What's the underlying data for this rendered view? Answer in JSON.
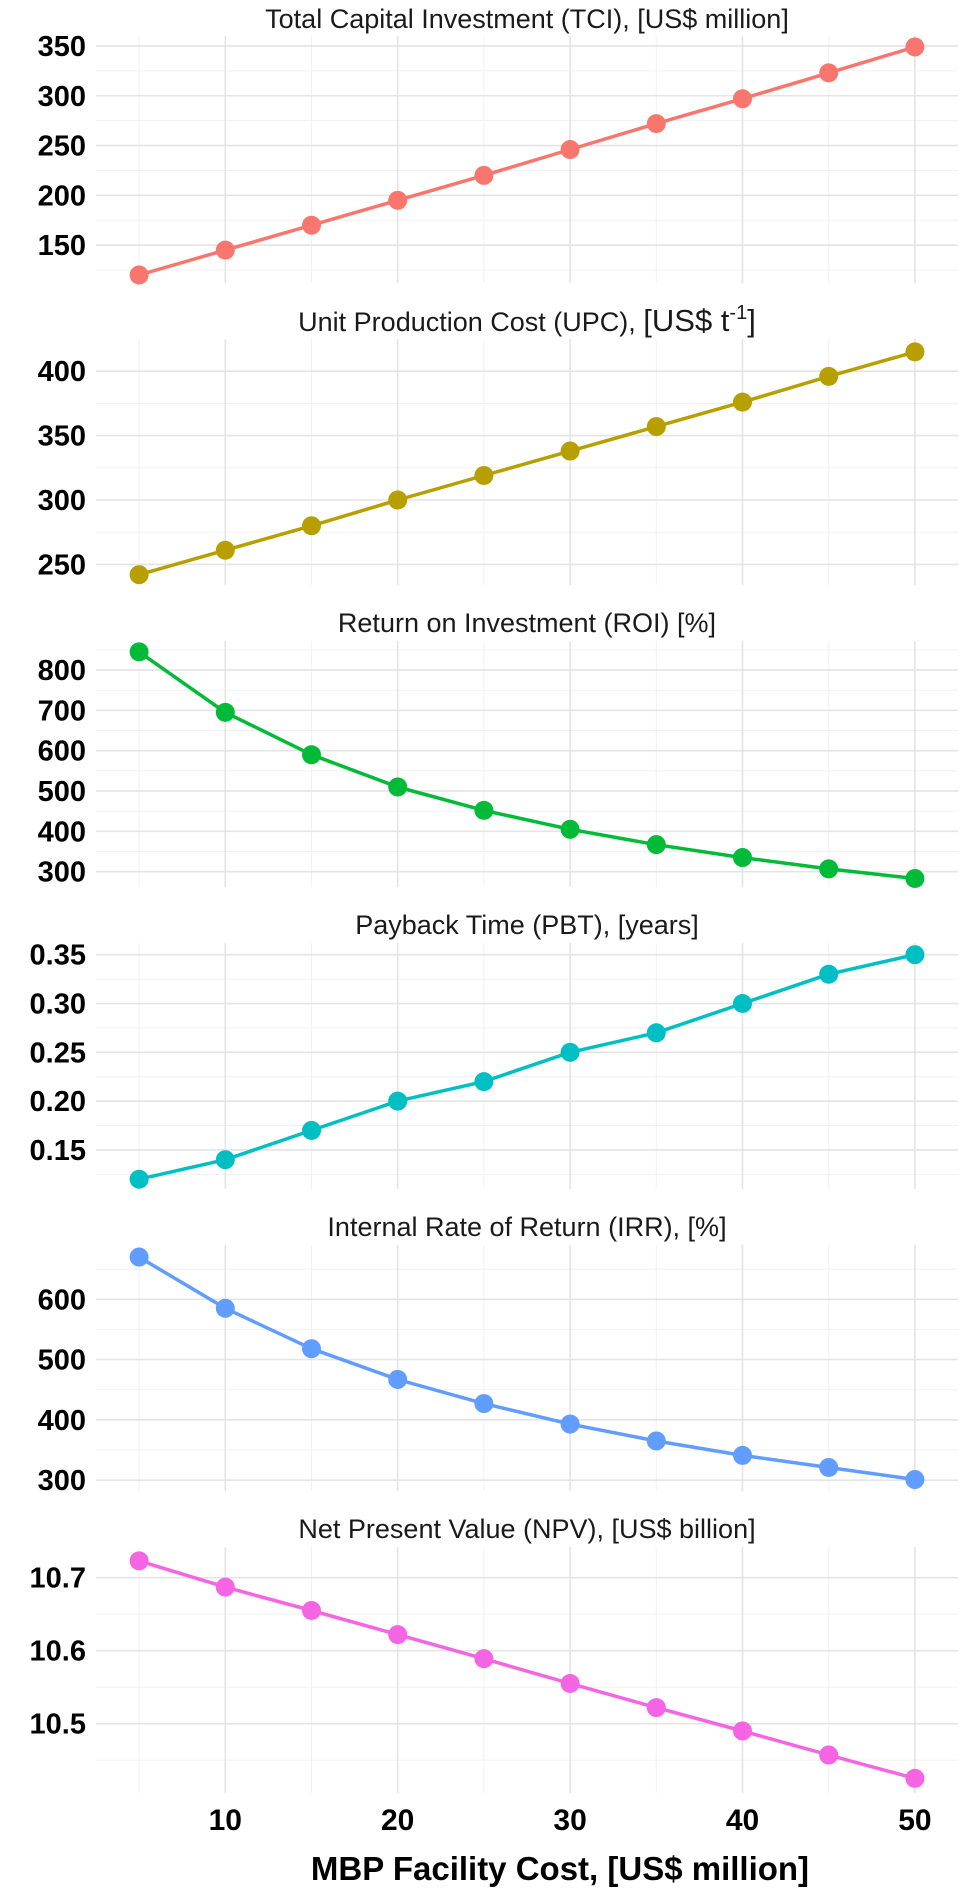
{
  "chart_data": [
    {
      "type": "line",
      "title": "Total Capital Investment (TCI), [US$ million]",
      "x": [
        5,
        10,
        15,
        20,
        25,
        30,
        35,
        40,
        45,
        50
      ],
      "series": [
        {
          "values": [
            120,
            145,
            170,
            195,
            220,
            246,
            272,
            297,
            323,
            349
          ],
          "color": "#F8766D"
        }
      ],
      "ylim": [
        112,
        360
      ],
      "yticks": [
        150,
        200,
        250,
        300,
        350
      ],
      "ytick_labels": [
        "150",
        "200",
        "250",
        "300",
        "350"
      ]
    },
    {
      "type": "line",
      "title_main": "Unit Production Cost (UPC), ",
      "title_unit": "[US$ t",
      "title_sup": "-1",
      "title_close": "]",
      "x": [
        5,
        10,
        15,
        20,
        25,
        30,
        35,
        40,
        45,
        50
      ],
      "series": [
        {
          "values": [
            242,
            261,
            280,
            300,
            319,
            338,
            357,
            376,
            396,
            415
          ],
          "color": "#B79F00"
        }
      ],
      "ylim": [
        234,
        425
      ],
      "yticks": [
        250,
        300,
        350,
        400
      ],
      "ytick_labels": [
        "250",
        "300",
        "350",
        "400"
      ]
    },
    {
      "type": "line",
      "title": "Return on Investment (ROI) [%]",
      "x": [
        5,
        10,
        15,
        20,
        25,
        30,
        35,
        40,
        45,
        50
      ],
      "series": [
        {
          "values": [
            845,
            695,
            590,
            510,
            452,
            405,
            367,
            335,
            307,
            283
          ],
          "color": "#00BA38"
        }
      ],
      "ylim": [
        262,
        872
      ],
      "yticks": [
        300,
        400,
        500,
        600,
        700,
        800
      ],
      "ytick_labels": [
        "300",
        "400",
        "500",
        "600",
        "700",
        "800"
      ]
    },
    {
      "type": "line",
      "title": "Payback Time (PBT), [years]",
      "x": [
        5,
        10,
        15,
        20,
        25,
        30,
        35,
        40,
        45,
        50
      ],
      "series": [
        {
          "values": [
            0.12,
            0.14,
            0.17,
            0.2,
            0.22,
            0.25,
            0.27,
            0.3,
            0.33,
            0.35
          ],
          "color": "#00BFC4"
        }
      ],
      "ylim": [
        0.11,
        0.362
      ],
      "yticks": [
        0.15,
        0.2,
        0.25,
        0.3,
        0.35
      ],
      "ytick_labels": [
        "0.15",
        "0.20",
        "0.25",
        "0.30",
        "0.35"
      ]
    },
    {
      "type": "line",
      "title": "Internal Rate of Return (IRR), [%]",
      "x": [
        5,
        10,
        15,
        20,
        25,
        30,
        35,
        40,
        45,
        50
      ],
      "series": [
        {
          "values": [
            670,
            585,
            518,
            467,
            427,
            393,
            365,
            341,
            321,
            301
          ],
          "color": "#619CFF"
        }
      ],
      "ylim": [
        282,
        690
      ],
      "yticks": [
        300,
        400,
        500,
        600
      ],
      "ytick_labels": [
        "300",
        "400",
        "500",
        "600"
      ]
    },
    {
      "type": "line",
      "title": "Net Present Value (NPV), [US$ billion]",
      "x": [
        5,
        10,
        15,
        20,
        25,
        30,
        35,
        40,
        45,
        50
      ],
      "series": [
        {
          "values": [
            10.723,
            10.687,
            10.655,
            10.622,
            10.589,
            10.555,
            10.522,
            10.49,
            10.457,
            10.425
          ],
          "color": "#F564E3"
        }
      ],
      "ylim": [
        10.405,
        10.742
      ],
      "yticks": [
        10.5,
        10.6,
        10.7
      ],
      "ytick_labels": [
        "10.5",
        "10.6",
        "10.7"
      ]
    }
  ],
  "x_axis": {
    "label": "MBP Facility Cost, [US$ million]",
    "ticks": [
      10,
      20,
      30,
      40,
      50
    ],
    "tick_labels": [
      "10",
      "20",
      "30",
      "40",
      "50"
    ],
    "xlim": [
      2.5,
      52.5
    ]
  }
}
